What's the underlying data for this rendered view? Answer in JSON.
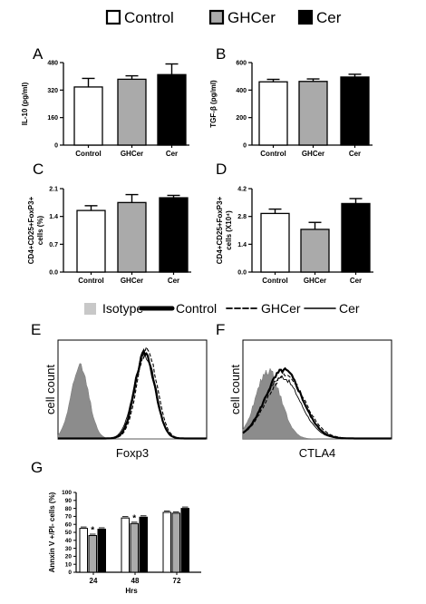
{
  "legend_top": {
    "items": [
      {
        "label": "Control",
        "fill": "#ffffff"
      },
      {
        "label": "GHCer",
        "fill": "#aaaaaa"
      },
      {
        "label": "Cer",
        "fill": "#000000"
      }
    ]
  },
  "legend_flow": {
    "items": [
      {
        "label": "Isotype",
        "style": "filled-gray"
      },
      {
        "label": "Control",
        "style": "thick-solid"
      },
      {
        "label": "GHCer",
        "style": "dashed"
      },
      {
        "label": "Cer",
        "style": "thin-solid"
      }
    ]
  },
  "colors": {
    "control": "#ffffff",
    "ghcer": "#aaaaaa",
    "cer": "#000000",
    "isotype": "#8c8c8c"
  },
  "chart_data": [
    {
      "panel": "A",
      "type": "bar",
      "categories": [
        "Control",
        "GHCer",
        "Cer"
      ],
      "values": [
        338,
        383,
        410
      ],
      "errors": [
        50,
        20,
        62
      ],
      "ylabel": "IL-10 (pg/ml)",
      "ylim": [
        0,
        480
      ],
      "yticks": [
        "0",
        "160",
        "320",
        "480"
      ]
    },
    {
      "panel": "B",
      "type": "bar",
      "categories": [
        "Control",
        "GHCer",
        "Cer"
      ],
      "values": [
        460,
        463,
        495
      ],
      "errors": [
        18,
        18,
        20
      ],
      "ylabel": "TGF-β (pg/ml)",
      "ylim": [
        0,
        600
      ],
      "yticks": [
        "0",
        "200",
        "400",
        "600"
      ]
    },
    {
      "panel": "C",
      "type": "bar",
      "categories": [
        "Control",
        "GHCer",
        "Cer"
      ],
      "values": [
        1.55,
        1.75,
        1.87
      ],
      "errors": [
        0.12,
        0.2,
        0.06
      ],
      "ylabel": [
        "CD4+CD25+FoxP3+",
        "cells (%)"
      ],
      "ylim": [
        0,
        2.1
      ],
      "yticks": [
        "0.0",
        "0.7",
        "1.4",
        "2.1"
      ]
    },
    {
      "panel": "D",
      "type": "bar",
      "categories": [
        "Control",
        "GHCer",
        "Cer"
      ],
      "values": [
        2.95,
        2.15,
        3.45
      ],
      "errors": [
        0.22,
        0.35,
        0.25
      ],
      "ylabel": [
        "CD4+CD25+FoxP3+",
        "cells (X10⁴)"
      ],
      "ylim": [
        0,
        4.2
      ],
      "yticks": [
        "0.0",
        "1.4",
        "2.8",
        "4.2"
      ]
    },
    {
      "panel": "E",
      "type": "area",
      "xlabel": "Foxp3",
      "ylabel": "cell count",
      "series": [
        "Isotype",
        "Control",
        "GHCer",
        "Cer"
      ]
    },
    {
      "panel": "F",
      "type": "area",
      "xlabel": "CTLA4",
      "ylabel": "cell count",
      "series": [
        "Isotype",
        "Control",
        "GHCer",
        "Cer"
      ]
    },
    {
      "panel": "G",
      "type": "bar",
      "categories": [
        "24",
        "48",
        "72"
      ],
      "series": [
        {
          "name": "Control",
          "values": [
            55,
            68,
            75
          ]
        },
        {
          "name": "GHCer",
          "values": [
            46,
            61,
            74
          ]
        },
        {
          "name": "Cer",
          "values": [
            54,
            69,
            80
          ]
        }
      ],
      "significance": [
        {
          "category": "24",
          "series": "GHCer",
          "mark": "*"
        },
        {
          "category": "48",
          "series": "GHCer",
          "mark": "*"
        }
      ],
      "xlabel": "Hrs",
      "ylabel": "Annxin V +/PI- cells (%)",
      "ylim": [
        0,
        100
      ],
      "yticks": [
        "0",
        "10",
        "20",
        "30",
        "40",
        "50",
        "60",
        "70",
        "80",
        "90",
        "100"
      ]
    }
  ]
}
